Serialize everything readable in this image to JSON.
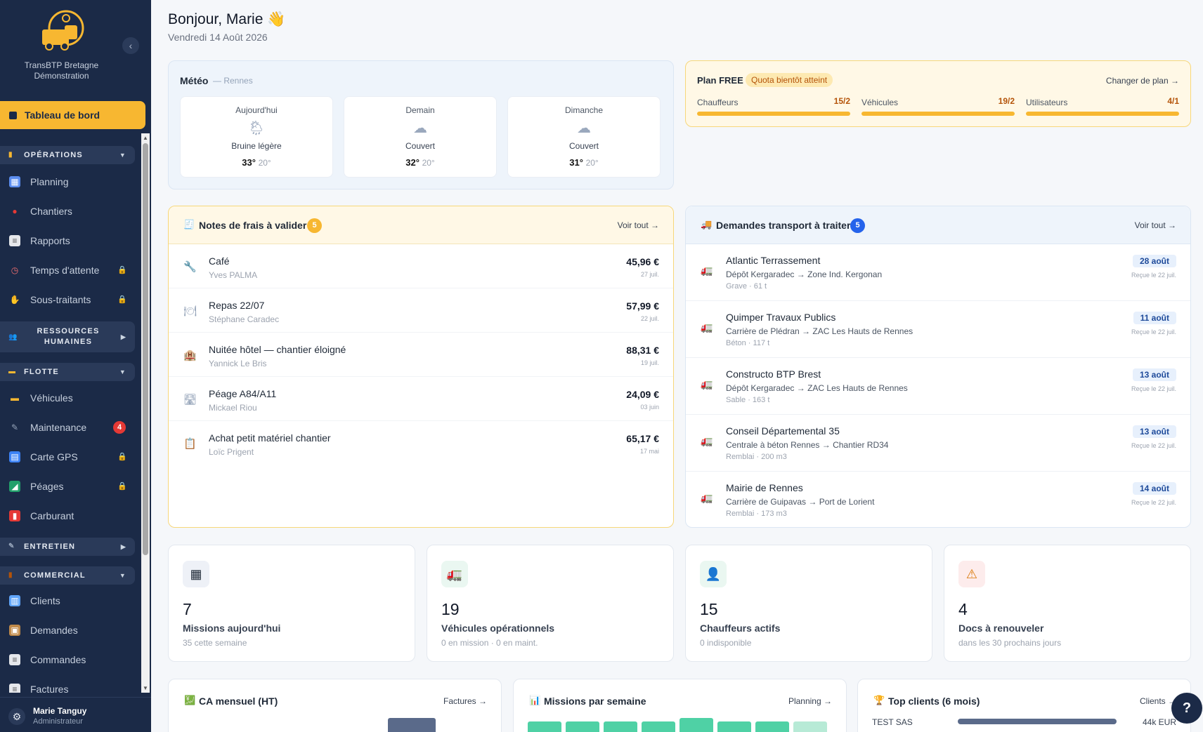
{
  "sidebar": {
    "brand_line1": "TransBTP Bretagne",
    "brand_line2": "Démonstration",
    "active": "Tableau de bord",
    "sections": {
      "operations": "OPÉRATIONS",
      "rh": "RESSOURCES HUMAINES",
      "flotte": "FLOTTE",
      "entretien": "ENTRETIEN",
      "commercial": "COMMERCIAL"
    },
    "items": {
      "planning": "Planning",
      "chantiers": "Chantiers",
      "rapports": "Rapports",
      "temps": "Temps d'attente",
      "sous_traitants": "Sous-traitants",
      "vehicules": "Véhicules",
      "maintenance": "Maintenance",
      "maintenance_badge": "4",
      "carte_gps": "Carte GPS",
      "peages": "Péages",
      "carburant": "Carburant",
      "clients": "Clients",
      "demandes": "Demandes",
      "commandes": "Commandes",
      "factures": "Factures"
    },
    "user": {
      "name": "Marie Tanguy",
      "role": "Administrateur"
    }
  },
  "header": {
    "greeting": "Bonjour, Marie 👋",
    "date": "Vendredi 14 Août 2026"
  },
  "weather": {
    "title": "Météo",
    "city": "— Rennes",
    "days": [
      {
        "label": "Aujourd'hui",
        "icon": "🌦",
        "desc": "Bruine légère",
        "max": "33°",
        "min": "20°"
      },
      {
        "label": "Demain",
        "icon": "☁",
        "desc": "Couvert",
        "max": "32°",
        "min": "20°"
      },
      {
        "label": "Dimanche",
        "icon": "☁",
        "desc": "Couvert",
        "max": "31°",
        "min": "20°"
      }
    ]
  },
  "plan": {
    "title": "Plan FREE",
    "badge": "Quota bientôt atteint",
    "change": "Changer de plan →",
    "quotas": [
      {
        "label": "Chauffeurs",
        "value": "15/2",
        "fill": 1.0
      },
      {
        "label": "Véhicules",
        "value": "19/2",
        "fill": 1.0
      },
      {
        "label": "Utilisateurs",
        "value": "4/1",
        "fill": 1.0
      }
    ]
  },
  "notes": {
    "title": "Notes de frais à valider",
    "count": "5",
    "link": "Voir tout →",
    "rows": [
      {
        "icon": "🔧",
        "title": "Café",
        "person": "Yves PALMA",
        "amount": "45,96 €",
        "date": "27 juil."
      },
      {
        "icon": "🍽",
        "title": "Repas 22/07",
        "person": "Stéphane Caradec",
        "amount": "57,99 €",
        "date": "22 juil."
      },
      {
        "icon": "🏨",
        "title": "Nuitée hôtel — chantier éloigné",
        "person": "Yannick Le Bris",
        "amount": "88,31 €",
        "date": "19 juil."
      },
      {
        "icon": "🛣",
        "title": "Péage A84/A11",
        "person": "Mickael Riou",
        "amount": "24,09 €",
        "date": "03 juin"
      },
      {
        "icon": "📋",
        "title": "Achat petit matériel chantier",
        "person": "Loïc Prigent",
        "amount": "65,17 €",
        "date": "17 mai"
      }
    ]
  },
  "transport": {
    "title": "Demandes transport à traiter",
    "count": "5",
    "link": "Voir tout →",
    "rows": [
      {
        "client": "Atlantic Terrassement",
        "route": "Dépôt Kergaradec → Zone Ind. Kergonan",
        "material": "Grave · 61 t",
        "date": "28 août",
        "received": "Reçue le 22 juil."
      },
      {
        "client": "Quimper Travaux Publics",
        "route": "Carrière de Plédran → ZAC Les Hauts de Rennes",
        "material": "Béton · 117 t",
        "date": "11 août",
        "received": "Reçue le 22 juil."
      },
      {
        "client": "Constructo BTP Brest",
        "route": "Dépôt Kergaradec → ZAC Les Hauts de Rennes",
        "material": "Sable · 163 t",
        "date": "13 août",
        "received": "Reçue le 22 juil."
      },
      {
        "client": "Conseil Départemental 35",
        "route": "Centrale à béton Rennes → Chantier RD34",
        "material": "Remblai · 200 m3",
        "date": "13 août",
        "received": "Reçue le 22 juil."
      },
      {
        "client": "Mairie de Rennes",
        "route": "Carrière de Guipavas → Port de Lorient",
        "material": "Remblai · 173 m3",
        "date": "14 août",
        "received": "Reçue le 22 juil."
      }
    ]
  },
  "kpis": [
    {
      "icon": "calendar-icon",
      "value": "7",
      "label": "Missions aujourd'hui",
      "sub": "35 cette semaine",
      "bg": "#eef1f7"
    },
    {
      "icon": "truck-icon",
      "value": "19",
      "label": "Véhicules opérationnels",
      "sub": "0 en mission · 0 en maint.",
      "bg": "#eaf7f1"
    },
    {
      "icon": "driver-icon",
      "value": "15",
      "label": "Chauffeurs actifs",
      "sub": "0 indisponible",
      "bg": "#eaf7f1"
    },
    {
      "icon": "warning-icon",
      "value": "4",
      "label": "Docs à renouveler",
      "sub": "dans les 30 prochains jours",
      "bg": "#fdecec"
    }
  ],
  "bottom": {
    "ca": {
      "title": "CA mensuel (HT)",
      "link": "Factures →"
    },
    "missions": {
      "title": "Missions par semaine",
      "link": "Planning →"
    },
    "top": {
      "title": "Top clients (6 mois)",
      "link": "Clients →",
      "first_name": "TEST SAS",
      "first_value": "44k EUR"
    }
  },
  "help": "?"
}
